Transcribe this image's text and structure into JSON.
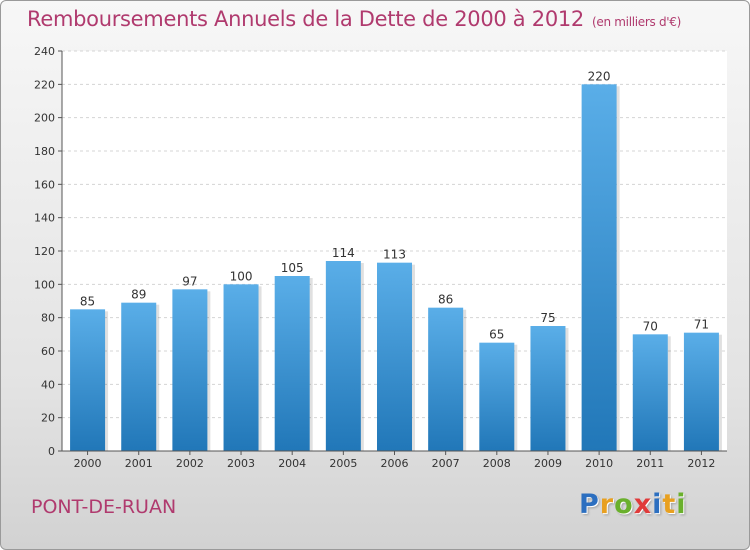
{
  "header": {
    "title": "Remboursements Annuels de la Dette de 2000 à 2012",
    "subtitle": "(en milliers d'€)"
  },
  "footer": {
    "commune": "PONT-DE-RUAN",
    "logo_letters": [
      "P",
      "r",
      "o",
      "x",
      "i",
      "t",
      "i"
    ]
  },
  "colors": {
    "title": "#b03a6e",
    "bar_top": "#5aaee8",
    "bar_bottom": "#2177b8",
    "logo": [
      "#2c6fc0",
      "#e8a020",
      "#6ab02c",
      "#e03a3a",
      "#2c6fc0",
      "#e8a020",
      "#6ab02c"
    ]
  },
  "chart_data": {
    "type": "bar",
    "title": "Remboursements Annuels de la Dette de 2000 à 2012",
    "categories": [
      "2000",
      "2001",
      "2002",
      "2003",
      "2004",
      "2005",
      "2006",
      "2007",
      "2008",
      "2009",
      "2010",
      "2011",
      "2012"
    ],
    "values": [
      85,
      89,
      97,
      100,
      105,
      114,
      113,
      86,
      65,
      75,
      220,
      70,
      71
    ],
    "ylim": [
      0,
      240
    ],
    "yticks": [
      0,
      20,
      40,
      60,
      80,
      100,
      120,
      140,
      160,
      180,
      200,
      220,
      240
    ],
    "grid": true,
    "data_labels": true
  }
}
